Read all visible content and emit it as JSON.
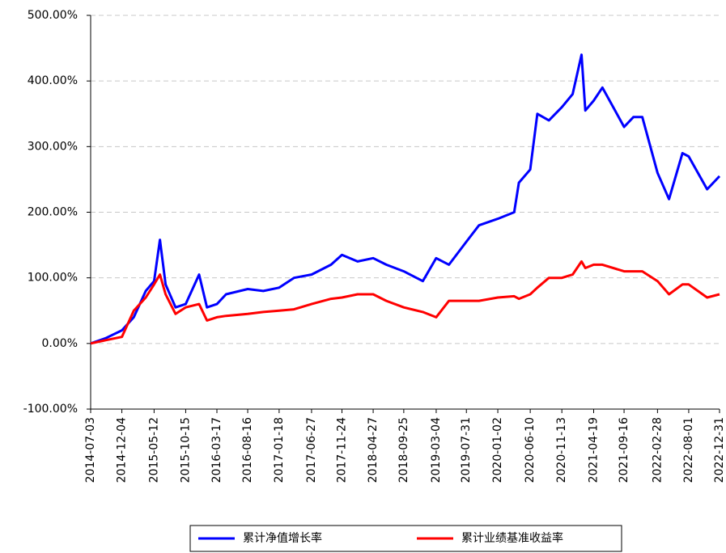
{
  "chart_data": {
    "type": "line",
    "x": [
      "2014-07-03",
      "2014-09-15",
      "2014-12-04",
      "2015-02-01",
      "2015-04-01",
      "2015-05-12",
      "2015-06-10",
      "2015-07-08",
      "2015-08-26",
      "2015-10-15",
      "2015-12-20",
      "2016-01-28",
      "2016-03-17",
      "2016-05-01",
      "2016-08-16",
      "2016-11-01",
      "2017-01-18",
      "2017-04-01",
      "2017-06-27",
      "2017-10-01",
      "2017-11-24",
      "2018-02-09",
      "2018-04-27",
      "2018-07-01",
      "2018-09-25",
      "2018-12-28",
      "2019-03-04",
      "2019-05-06",
      "2019-07-31",
      "2019-10-01",
      "2020-01-02",
      "2020-03-23",
      "2020-04-15",
      "2020-06-10",
      "2020-07-15",
      "2020-09-10",
      "2020-11-13",
      "2021-01-05",
      "2021-02-18",
      "2021-03-09",
      "2021-04-19",
      "2021-06-01",
      "2021-09-16",
      "2021-11-01",
      "2021-12-15",
      "2022-02-28",
      "2022-04-26",
      "2022-07-01",
      "2022-08-01",
      "2022-10-31",
      "2022-12-31"
    ],
    "series": [
      {
        "name": "累计净值增长率",
        "color": "#0000ff",
        "values": [
          0,
          8,
          20,
          40,
          80,
          95,
          158,
          90,
          55,
          60,
          105,
          55,
          60,
          75,
          83,
          80,
          85,
          100,
          105,
          120,
          135,
          125,
          130,
          120,
          110,
          95,
          130,
          120,
          155,
          180,
          190,
          200,
          245,
          265,
          350,
          340,
          360,
          380,
          440,
          355,
          370,
          390,
          330,
          345,
          345,
          260,
          220,
          290,
          285,
          235,
          255
        ]
      },
      {
        "name": "累计业绩基准收益率",
        "color": "#ff0000",
        "values": [
          0,
          5,
          10,
          50,
          70,
          90,
          105,
          75,
          45,
          55,
          60,
          35,
          40,
          42,
          45,
          48,
          50,
          52,
          60,
          68,
          70,
          75,
          75,
          65,
          55,
          48,
          40,
          65,
          65,
          65,
          70,
          72,
          68,
          75,
          85,
          100,
          100,
          105,
          125,
          115,
          120,
          120,
          110,
          110,
          110,
          95,
          75,
          90,
          90,
          70,
          75
        ]
      }
    ],
    "xlim": [
      "2014-07-03",
      "2022-12-31"
    ],
    "xticks": [
      "2014-07-03",
      "2014-12-04",
      "2015-05-12",
      "2015-10-15",
      "2016-03-17",
      "2016-08-16",
      "2017-01-18",
      "2017-06-27",
      "2017-11-24",
      "2018-04-27",
      "2018-09-25",
      "2019-03-04",
      "2019-07-31",
      "2020-01-02",
      "2020-06-10",
      "2020-11-13",
      "2021-04-19",
      "2021-09-16",
      "2022-02-28",
      "2022-08-01",
      "2022-12-31"
    ],
    "ylim": [
      -100,
      500
    ],
    "yticks": [
      {
        "value": -100,
        "label": "-100.00%"
      },
      {
        "value": 0,
        "label": "0.00%"
      },
      {
        "value": 100,
        "label": "100.00%"
      },
      {
        "value": 200,
        "label": "200.00%"
      },
      {
        "value": 300,
        "label": "300.00%"
      },
      {
        "value": 400,
        "label": "400.00%"
      },
      {
        "value": 500,
        "label": "500.00%"
      }
    ],
    "grid": true
  }
}
